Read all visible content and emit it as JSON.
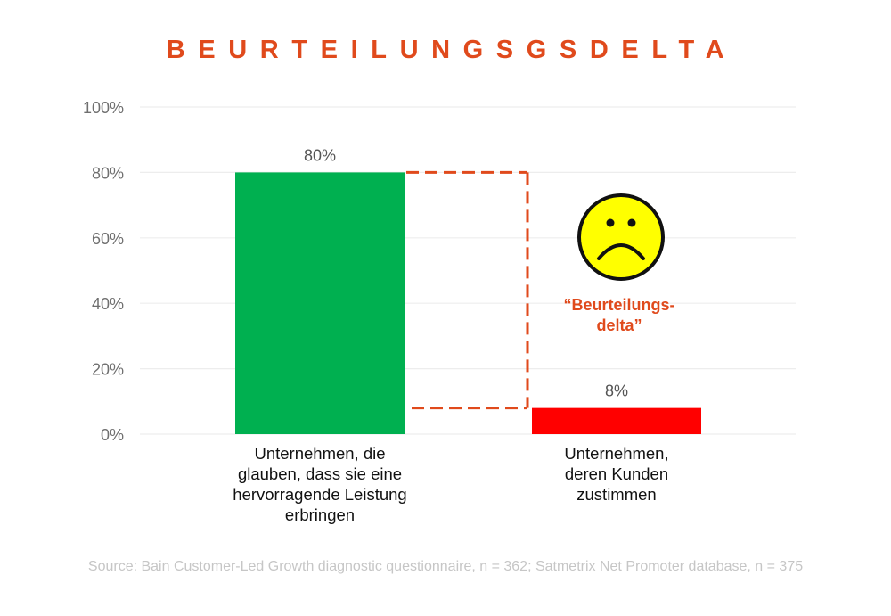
{
  "chart_data": {
    "type": "bar",
    "title": "BEURTEILUNGSGSDELTA",
    "categories": [
      "Unternehmen, die glauben, dass sie eine hervorragende Leistung erbringen",
      "Unternehmen, deren Kunden zustimmen"
    ],
    "category_lines": [
      [
        "Unternehmen, die",
        "glauben, dass sie eine",
        "hervorragende Leistung",
        "erbringen"
      ],
      [
        "Unternehmen,",
        "deren Kunden",
        "zustimmen"
      ]
    ],
    "values": [
      80,
      8
    ],
    "value_labels": [
      "80%",
      "8%"
    ],
    "bar_colors": [
      "#00b050",
      "#ff0000"
    ],
    "xlabel": "",
    "ylabel": "",
    "ylim": [
      0,
      100
    ],
    "yticks": [
      0,
      20,
      40,
      60,
      80,
      100
    ],
    "ytick_labels": [
      "0%",
      "20%",
      "40%",
      "60%",
      "80%",
      "100%"
    ],
    "grid": true,
    "annotations": [
      {
        "type": "dashed-bracket",
        "from_value": 80,
        "to_value": 8,
        "color": "#e04a1c"
      },
      {
        "type": "icon",
        "icon": "sad-face-icon",
        "fill": "#ffff00"
      },
      {
        "type": "text",
        "lines": [
          "“Beurteilungs-",
          "delta”"
        ],
        "color": "#e04a1c"
      }
    ]
  },
  "source": "Source: Bain Customer-Led Growth diagnostic questionnaire, n = 362; Satmetrix Net Promoter database, n = 375"
}
